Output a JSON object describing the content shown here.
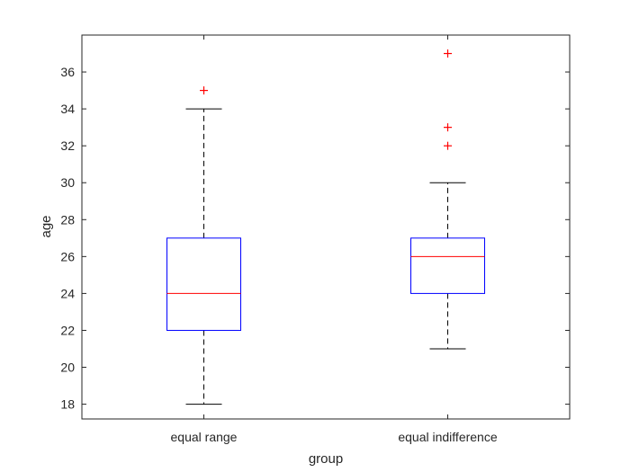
{
  "chart_data": {
    "type": "box",
    "xlabel": "group",
    "ylabel": "age",
    "ylim": [
      17.2,
      38
    ],
    "yticks": [
      18,
      20,
      22,
      24,
      26,
      28,
      30,
      32,
      34,
      36
    ],
    "grid": false,
    "categories": [
      "equal range",
      "equal indifference"
    ],
    "boxes": [
      {
        "category": "equal range",
        "whisker_low": 18,
        "q1": 22,
        "median": 24,
        "q3": 27,
        "whisker_high": 34,
        "outliers": [
          35
        ]
      },
      {
        "category": "equal indifference",
        "whisker_low": 21,
        "q1": 24,
        "median": 26,
        "q3": 27,
        "whisker_high": 30,
        "outliers": [
          32,
          33,
          37
        ]
      }
    ],
    "colors": {
      "box": "#0000ff",
      "median": "#ff0000",
      "whisker": "#000000",
      "outlier": "#ff0000",
      "axis": "#262626"
    }
  }
}
